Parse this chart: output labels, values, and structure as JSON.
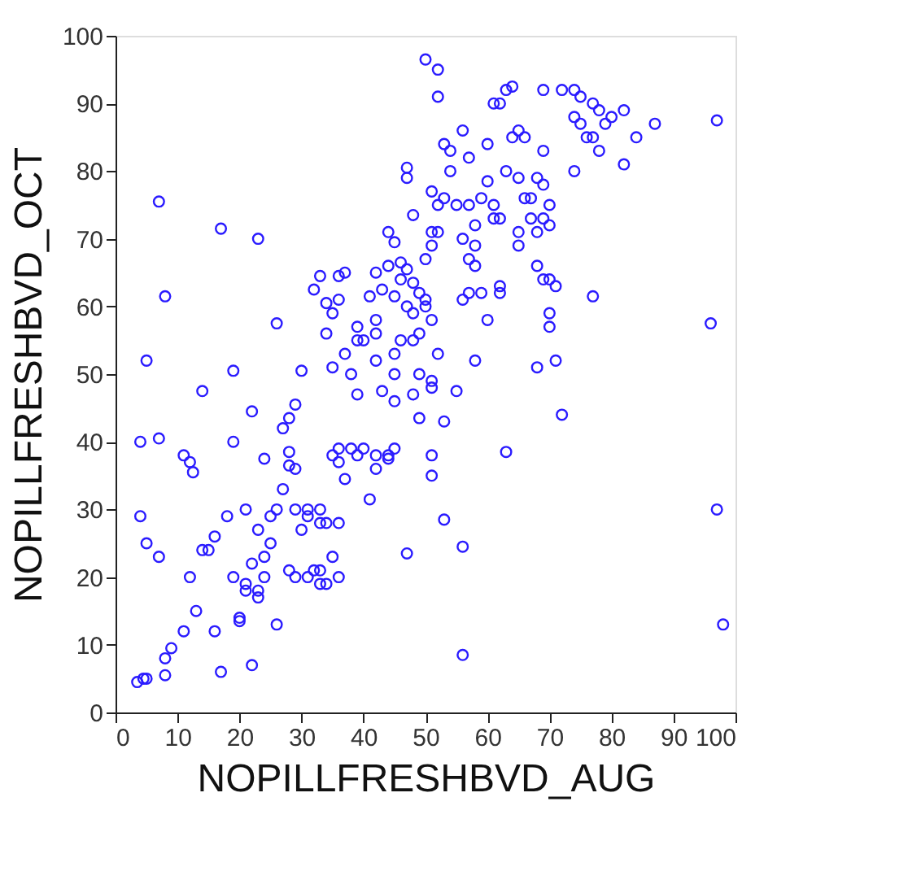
{
  "chart_data": {
    "type": "scatter",
    "xlabel": "NOPILLFRESHBVD_AUG",
    "ylabel": "NOPILLFRESHBVD_OCT",
    "xlim": [
      0,
      100
    ],
    "ylim": [
      0,
      100
    ],
    "xticks": [
      0,
      10,
      20,
      30,
      40,
      50,
      60,
      70,
      80,
      90,
      100
    ],
    "yticks": [
      0,
      10,
      20,
      30,
      40,
      50,
      60,
      70,
      80,
      90,
      100
    ],
    "grid": false,
    "legend": false,
    "marker": "circle",
    "series": [
      {
        "color": "#2a1bff",
        "x": [
          3.5,
          4.5,
          5,
          8,
          8,
          9,
          11,
          13,
          16,
          17,
          22,
          20,
          20,
          23,
          24,
          26,
          19,
          22,
          21,
          24,
          25,
          28,
          29,
          33,
          33,
          34,
          35,
          31,
          32,
          36,
          4,
          5,
          7,
          12,
          15,
          18,
          23,
          26,
          7,
          17,
          23,
          8,
          5,
          4,
          7,
          14,
          11,
          12,
          12.5,
          19,
          19,
          22,
          24,
          26,
          27,
          28,
          28,
          28,
          29,
          29,
          30,
          32,
          33,
          34,
          34,
          35,
          35,
          36,
          37,
          36,
          39,
          39,
          40,
          41,
          42,
          42,
          42,
          43,
          44,
          45,
          44,
          45,
          46,
          47,
          47,
          48,
          47,
          48,
          46,
          47,
          48,
          49,
          50,
          51,
          50,
          50,
          51,
          51,
          52,
          52,
          51,
          53,
          50,
          52,
          52,
          53,
          54,
          54,
          56,
          55,
          57,
          57,
          56,
          57,
          58,
          58,
          59,
          60,
          60,
          61,
          61,
          62,
          61,
          62,
          63,
          64,
          63,
          65,
          65,
          64,
          66,
          66,
          67,
          65,
          65,
          67,
          68,
          69,
          69,
          70,
          70,
          68,
          68,
          69,
          70,
          71,
          70,
          70,
          71,
          72,
          68,
          69,
          72,
          74,
          75,
          74,
          75,
          76,
          77,
          77,
          78,
          79,
          80,
          82,
          82,
          84,
          87,
          74,
          78,
          77,
          69,
          96,
          97,
          97,
          98,
          56,
          56,
          53,
          49,
          51,
          51,
          51,
          51,
          52,
          53,
          55,
          56,
          57,
          58,
          62,
          62,
          60,
          63,
          58,
          59,
          33,
          33,
          34,
          36,
          37,
          38,
          39,
          39,
          40,
          41,
          42,
          42,
          42,
          43,
          44,
          44,
          45,
          45,
          45,
          46,
          45,
          47,
          48,
          49,
          49,
          48,
          36,
          38,
          37,
          31,
          30,
          31,
          25,
          27,
          14,
          16,
          21,
          21,
          23,
          29,
          35,
          36
        ],
        "values": [
          4.5,
          5,
          5,
          5.5,
          8,
          9.5,
          12,
          15,
          12,
          6,
          7,
          14,
          13.5,
          17,
          20,
          13,
          20,
          22,
          18,
          23,
          25,
          21,
          20,
          19,
          21,
          19,
          23,
          20,
          21,
          20,
          29,
          25,
          23,
          20,
          24,
          29,
          27,
          30,
          75.5,
          71.5,
          70,
          61.5,
          52,
          40,
          40.5,
          47.5,
          38,
          37,
          35.5,
          50.5,
          40,
          44.5,
          37.5,
          57.5,
          42,
          43.5,
          38.5,
          36.5,
          36,
          45.5,
          50.5,
          62.5,
          64.5,
          60.5,
          56,
          59,
          51,
          64.5,
          65,
          61,
          55,
          57,
          55,
          61.5,
          56,
          58,
          65,
          62.5,
          71,
          69.5,
          66,
          61.5,
          66.5,
          80.5,
          79,
          73.5,
          65.5,
          63.5,
          64,
          60,
          59,
          62,
          61,
          58,
          60,
          67,
          69,
          71,
          75,
          71,
          77,
          76,
          96.5,
          95,
          91,
          84,
          83,
          80,
          86,
          75,
          75,
          82,
          70,
          67,
          66,
          72,
          76,
          78.5,
          84,
          75,
          73,
          73,
          90,
          90,
          92,
          92.5,
          80,
          79,
          86,
          85,
          85,
          76,
          73,
          71,
          69,
          76,
          79,
          78,
          73,
          72,
          75,
          71,
          66,
          64,
          64,
          63,
          59,
          57,
          52,
          44,
          51,
          92,
          92,
          92,
          91,
          88,
          87,
          85,
          85,
          90,
          89,
          87,
          88,
          89,
          81,
          85,
          87,
          80,
          83,
          61.5,
          83,
          57.5,
          87.5,
          30,
          13,
          8.5,
          24.5,
          28.5,
          43.5,
          35,
          38,
          48,
          49,
          53,
          43,
          47.5,
          61,
          62,
          52,
          62,
          63,
          58,
          38.5,
          69,
          62,
          28,
          30,
          28,
          28,
          34.5,
          39,
          38,
          47,
          39,
          31.5,
          36,
          38,
          52,
          47.5,
          38,
          37.5,
          46,
          50,
          53,
          55,
          39,
          23.5,
          47,
          50,
          56,
          55,
          39,
          50,
          53,
          30,
          27,
          29,
          29,
          33,
          24,
          26,
          30,
          19,
          18,
          30,
          38,
          37
        ]
      }
    ]
  }
}
